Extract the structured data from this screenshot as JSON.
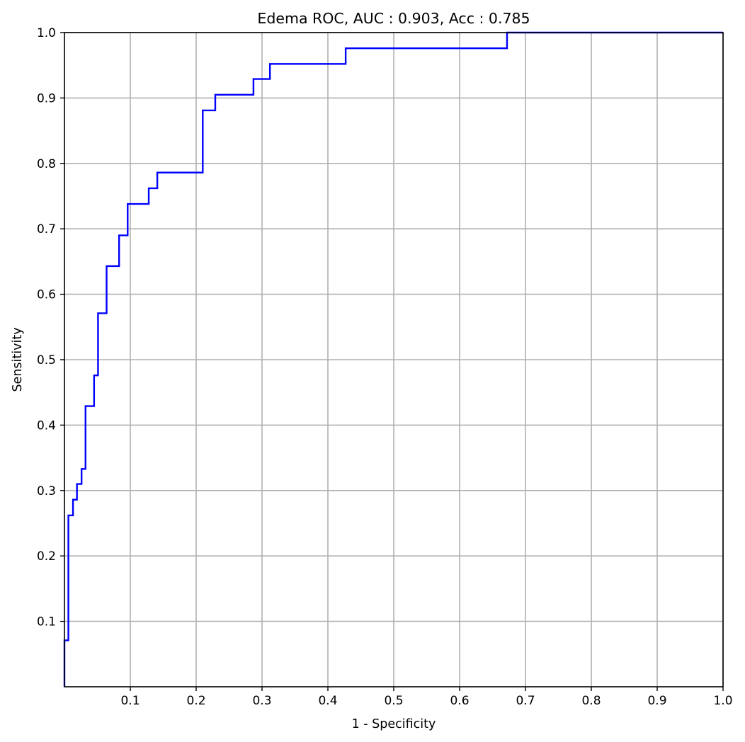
{
  "chart_data": {
    "type": "line",
    "title": "Edema ROC, AUC : 0.903, Acc : 0.785",
    "xlabel": "1 - Specificity",
    "ylabel": "Sensitivity",
    "xlim": [
      0,
      1
    ],
    "ylim": [
      0,
      1
    ],
    "grid": true,
    "xticks": [
      0.1,
      0.2,
      0.3,
      0.4,
      0.5,
      0.6,
      0.7,
      0.8,
      0.9,
      1.0
    ],
    "xtick_labels": [
      "0.1",
      "0.2",
      "0.3",
      "0.4",
      "0.5",
      "0.6",
      "0.7",
      "0.8",
      "0.9",
      "1.0"
    ],
    "yticks": [
      0.1,
      0.2,
      0.3,
      0.4,
      0.5,
      0.6,
      0.7,
      0.8,
      0.9,
      1.0
    ],
    "ytick_labels": [
      "0.1",
      "0.2",
      "0.3",
      "0.4",
      "0.5",
      "0.6",
      "0.7",
      "0.8",
      "0.9",
      "1.0"
    ],
    "series": [
      {
        "color": "#0000ff",
        "x": [
          0,
          0,
          0.006,
          0.006,
          0.013,
          0.013,
          0.019,
          0.019,
          0.026,
          0.026,
          0.032,
          0.032,
          0.045,
          0.045,
          0.051,
          0.051,
          0.064,
          0.064,
          0.083,
          0.083,
          0.096,
          0.096,
          0.128,
          0.128,
          0.141,
          0.141,
          0.21,
          0.21,
          0.229,
          0.229,
          0.287,
          0.287,
          0.312,
          0.312,
          0.427,
          0.427,
          0.672,
          0.672,
          1.0
        ],
        "y": [
          0,
          0.071,
          0.071,
          0.262,
          0.262,
          0.286,
          0.286,
          0.31,
          0.31,
          0.333,
          0.333,
          0.429,
          0.429,
          0.476,
          0.476,
          0.571,
          0.571,
          0.643,
          0.643,
          0.69,
          0.69,
          0.738,
          0.738,
          0.762,
          0.762,
          0.786,
          0.786,
          0.881,
          0.881,
          0.905,
          0.905,
          0.929,
          0.929,
          0.952,
          0.952,
          0.976,
          0.976,
          1.0,
          1.0
        ]
      }
    ]
  }
}
